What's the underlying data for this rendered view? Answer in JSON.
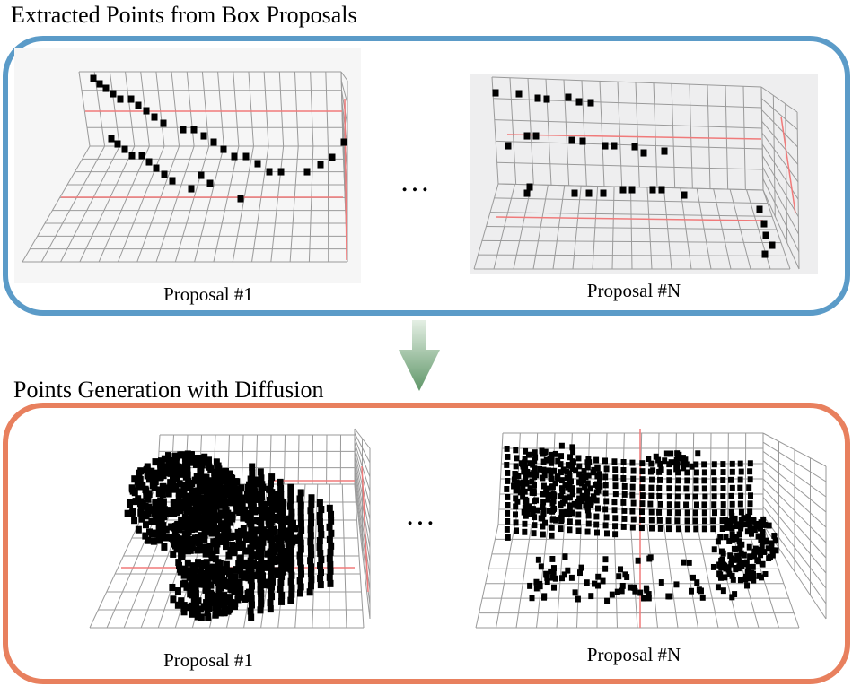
{
  "top_section": {
    "title": "Extracted Points from Box Proposals",
    "border_color": "#5b9bc8",
    "panels": [
      {
        "caption": "Proposal #1"
      },
      {
        "caption": "Proposal #N"
      }
    ],
    "ellipsis": "…"
  },
  "arrow": {
    "icon": "down-arrow-icon",
    "color": "#6a9e72"
  },
  "bottom_section": {
    "title": "Points Generation with Diffusion",
    "border_color": "#e8805e",
    "panels": [
      {
        "caption": "Proposal #1"
      },
      {
        "caption": "Proposal #N"
      }
    ],
    "ellipsis": "…"
  }
}
